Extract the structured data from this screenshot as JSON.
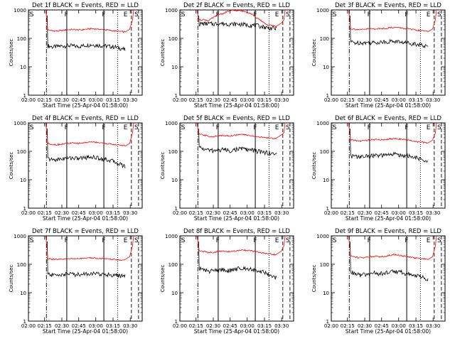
{
  "chart_data": [
    {
      "type": "line",
      "title": "Det 1f BLACK = Events, RED = LLD",
      "ylabel": "Counts/sec",
      "xlabel": "Start Time (25-Apr-04 01:58:00)",
      "x_ticks": [
        "02:00",
        "02:15",
        "02:30",
        "02:45",
        "03:00",
        "03:15",
        "03:30"
      ],
      "y_ticks": [
        "1",
        "10",
        "100",
        "1000"
      ],
      "ylim": [
        1,
        1000
      ],
      "y_scale": "log",
      "markers": [
        "S",
        "F",
        "F",
        "E",
        "S"
      ],
      "series": [
        {
          "name": "BLACK = Events",
          "color": "#000000",
          "values": [
            55,
            50,
            52,
            54,
            56,
            55,
            52,
            54,
            58,
            60,
            58,
            56,
            54,
            52,
            50,
            45,
            40
          ]
        },
        {
          "name": "RED = LLD",
          "color": "#ff0000",
          "values": [
            200,
            185,
            180,
            190,
            200,
            205,
            200,
            200,
            210,
            220,
            215,
            205,
            200,
            190,
            180,
            175,
            170
          ]
        }
      ]
    },
    {
      "type": "line",
      "title": "Det 2f BLACK = Events, RED = LLD",
      "ylabel": "Counts/sec",
      "xlabel": "Start Time (25-Apr-04 01:58:00)",
      "x_ticks": [
        "02:00",
        "02:15",
        "02:30",
        "02:45",
        "03:00",
        "03:15",
        "03:30"
      ],
      "y_ticks": [
        "1",
        "10",
        "100",
        "1000"
      ],
      "ylim": [
        1,
        1000
      ],
      "y_scale": "log",
      "markers": [
        "S",
        "F",
        "F",
        "E",
        "S"
      ],
      "series": [
        {
          "name": "BLACK = Events",
          "color": "#000000",
          "values": [
            320,
            330,
            330,
            320,
            340,
            330,
            320,
            320,
            320,
            310,
            300,
            290,
            280,
            260,
            240,
            230,
            220
          ]
        },
        {
          "name": "RED = LLD",
          "color": "#ff0000",
          "values": [
            450,
            460,
            420,
            550,
            700,
            750,
            900,
            950,
            950,
            900,
            850,
            700,
            500,
            400,
            300,
            280,
            260
          ]
        }
      ]
    },
    {
      "type": "line",
      "title": "Det 3f BLACK = Events, RED = LLD",
      "ylabel": "Counts/sec",
      "xlabel": "Start Time (25-Apr-04 01:58:00)",
      "x_ticks": [
        "02:00",
        "02:15",
        "02:30",
        "02:45",
        "03:00",
        "03:15",
        "03:30"
      ],
      "y_ticks": [
        "1",
        "10",
        "100",
        "1000"
      ],
      "ylim": [
        1,
        1000
      ],
      "y_scale": "log",
      "markers": [
        "S",
        "F",
        "F",
        "E",
        "S"
      ],
      "series": [
        {
          "name": "BLACK = Events",
          "color": "#000000",
          "values": [
            75,
            70,
            72,
            70,
            72,
            70,
            75,
            75,
            78,
            80,
            76,
            72,
            70,
            66,
            62,
            55,
            50
          ]
        },
        {
          "name": "RED = LLD",
          "color": "#ff0000",
          "values": [
            220,
            210,
            200,
            210,
            220,
            215,
            220,
            225,
            235,
            245,
            240,
            225,
            215,
            200,
            190,
            185,
            180
          ]
        }
      ]
    },
    {
      "type": "line",
      "title": "Det 4f BLACK = Events, RED = LLD",
      "ylabel": "Counts/sec",
      "xlabel": "Start Time (25-Apr-04 01:58:00)",
      "x_ticks": [
        "02:00",
        "02:15",
        "02:30",
        "02:45",
        "03:00",
        "03:15",
        "03:30"
      ],
      "y_ticks": [
        "1",
        "10",
        "100",
        "1000"
      ],
      "ylim": [
        1,
        1000
      ],
      "y_scale": "log",
      "markers": [
        "S",
        "F",
        "F",
        "E",
        "S"
      ],
      "series": [
        {
          "name": "BLACK = Events",
          "color": "#000000",
          "values": [
            55,
            50,
            52,
            55,
            58,
            60,
            56,
            58,
            62,
            65,
            60,
            56,
            52,
            48,
            42,
            35,
            30
          ]
        },
        {
          "name": "RED = LLD",
          "color": "#ff0000",
          "values": [
            190,
            175,
            170,
            180,
            190,
            195,
            190,
            195,
            205,
            215,
            210,
            200,
            190,
            180,
            170,
            165,
            160
          ]
        }
      ]
    },
    {
      "type": "line",
      "title": "Det 5f BLACK = Events, RED = LLD",
      "ylabel": "Counts/sec",
      "xlabel": "Start Time (25-Apr-04 01:58:00)",
      "x_ticks": [
        "02:00",
        "02:15",
        "02:30",
        "02:45",
        "03:00",
        "03:15",
        "03:30"
      ],
      "y_ticks": [
        "1",
        "10",
        "100",
        "1000"
      ],
      "ylim": [
        1,
        1000
      ],
      "y_scale": "log",
      "markers": [
        "S",
        "F",
        "F",
        "E",
        "S"
      ],
      "series": [
        {
          "name": "BLACK = Events",
          "color": "#000000",
          "values": [
            140,
            120,
            110,
            105,
            110,
            120,
            105,
            110,
            120,
            125,
            115,
            110,
            100,
            95,
            90,
            85,
            80
          ]
        },
        {
          "name": "RED = LLD",
          "color": "#ff0000",
          "values": [
            400,
            370,
            340,
            330,
            345,
            370,
            350,
            355,
            380,
            390,
            370,
            350,
            330,
            310,
            300,
            290,
            280
          ]
        }
      ]
    },
    {
      "type": "line",
      "title": "Det 6f BLACK = Events, RED = LLD",
      "ylabel": "Counts/sec",
      "xlabel": "Start Time (25-Apr-04 01:58:00)",
      "x_ticks": [
        "02:00",
        "02:15",
        "02:30",
        "02:45",
        "03:00",
        "03:15",
        "03:30"
      ],
      "y_ticks": [
        "1",
        "10",
        "100",
        "1000"
      ],
      "ylim": [
        1,
        1000
      ],
      "y_scale": "log",
      "markers": [
        "S",
        "F",
        "F",
        "E",
        "S"
      ],
      "series": [
        {
          "name": "BLACK = Events",
          "color": "#000000",
          "values": [
            70,
            66,
            64,
            66,
            70,
            72,
            70,
            72,
            76,
            80,
            76,
            72,
            68,
            62,
            56,
            48,
            40
          ]
        },
        {
          "name": "RED = LLD",
          "color": "#ff0000",
          "values": [
            250,
            240,
            230,
            240,
            255,
            260,
            255,
            260,
            270,
            280,
            275,
            260,
            245,
            230,
            215,
            205,
            195
          ]
        }
      ]
    },
    {
      "type": "line",
      "title": "Det 7f BLACK = Events, RED = LLD",
      "ylabel": "Counts/sec",
      "xlabel": "Start Time (25-Apr-04 01:58:00)",
      "x_ticks": [
        "02:00",
        "02:15",
        "02:30",
        "02:45",
        "03:00",
        "03:15",
        "03:30"
      ],
      "y_ticks": [
        "1",
        "10",
        "100",
        "1000"
      ],
      "ylim": [
        1,
        1000
      ],
      "y_scale": "log",
      "markers": [
        "S",
        "F",
        "F",
        "E",
        "S"
      ],
      "series": [
        {
          "name": "BLACK = Events",
          "color": "#000000",
          "values": [
            45,
            42,
            42,
            44,
            46,
            46,
            44,
            45,
            47,
            48,
            46,
            45,
            44,
            43,
            42,
            40,
            38
          ]
        },
        {
          "name": "RED = LLD",
          "color": "#ff0000",
          "values": [
            160,
            150,
            145,
            150,
            155,
            160,
            155,
            158,
            165,
            170,
            165,
            160,
            155,
            150,
            145,
            142,
            140
          ]
        }
      ]
    },
    {
      "type": "line",
      "title": "Det 8f BLACK = Events, RED = LLD",
      "ylabel": "Counts/sec",
      "xlabel": "Start Time (25-Apr-04 01:58:00)",
      "x_ticks": [
        "02:00",
        "02:15",
        "02:30",
        "02:45",
        "03:00",
        "03:15",
        "03:30"
      ],
      "y_ticks": [
        "1",
        "10",
        "100",
        "1000"
      ],
      "ylim": [
        1,
        1000
      ],
      "y_scale": "log",
      "markers": [
        "S",
        "F",
        "F",
        "E",
        "S"
      ],
      "series": [
        {
          "name": "BLACK = Events",
          "color": "#000000",
          "values": [
            75,
            62,
            58,
            60,
            62,
            65,
            60,
            64,
            70,
            75,
            72,
            68,
            62,
            55,
            48,
            40,
            32
          ]
        },
        {
          "name": "RED = LLD",
          "color": "#ff0000",
          "values": [
            300,
            280,
            260,
            265,
            280,
            290,
            280,
            285,
            300,
            320,
            310,
            290,
            270,
            250,
            235,
            225,
            215
          ]
        }
      ]
    },
    {
      "type": "line",
      "title": "Det 9f BLACK = Events, RED = LLD",
      "ylabel": "Counts/sec",
      "xlabel": "Start Time (25-Apr-04 01:58:00)",
      "x_ticks": [
        "02:00",
        "02:15",
        "02:30",
        "02:45",
        "03:00",
        "03:15",
        "03:30"
      ],
      "y_ticks": [
        "1",
        "10",
        "100",
        "1000"
      ],
      "ylim": [
        1,
        1000
      ],
      "y_scale": "log",
      "markers": [
        "S",
        "F",
        "F",
        "E",
        "S"
      ],
      "series": [
        {
          "name": "BLACK = Events",
          "color": "#000000",
          "values": [
            55,
            45,
            42,
            44,
            46,
            50,
            46,
            48,
            54,
            58,
            54,
            50,
            46,
            42,
            38,
            34,
            30
          ]
        },
        {
          "name": "RED = LLD",
          "color": "#ff0000",
          "values": [
            200,
            180,
            170,
            175,
            185,
            195,
            185,
            190,
            205,
            220,
            210,
            195,
            180,
            170,
            160,
            155,
            150
          ]
        }
      ]
    }
  ]
}
